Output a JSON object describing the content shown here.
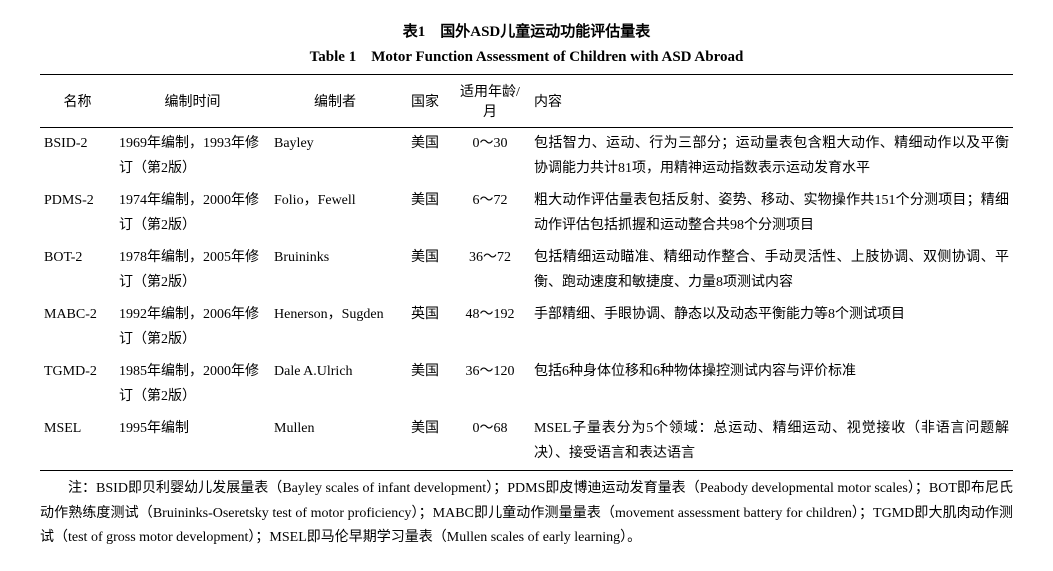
{
  "caption_zh": "表1　国外ASD儿童运动功能评估量表",
  "caption_en": "Table 1　Motor Function Assessment of Children with ASD Abroad",
  "columns": [
    "名称",
    "编制时间",
    "编制者",
    "国家",
    "适用年龄/月",
    "内容"
  ],
  "rows": [
    {
      "name": "BSID-2",
      "time": "1969年编制，1993年修订（第2版）",
      "author": "Bayley",
      "country": "美国",
      "age": "0～30",
      "content": "包括智力、运动、行为三部分；运动量表包含粗大动作、精细动作以及平衡协调能力共计81项，用精神运动指数表示运动发育水平"
    },
    {
      "name": "PDMS-2",
      "time": "1974年编制，2000年修订（第2版）",
      "author": "Folio，Fewell",
      "country": "美国",
      "age": "6～72",
      "content": "粗大动作评估量表包括反射、姿势、移动、实物操作共151个分测项目；精细动作评估包括抓握和运动整合共98个分测项目"
    },
    {
      "name": "BOT-2",
      "time": "1978年编制，2005年修订（第2版）",
      "author": "Bruininks",
      "country": "美国",
      "age": "36～72",
      "content": "包括精细运动瞄准、精细动作整合、手动灵活性、上肢协调、双侧协调、平衡、跑动速度和敏捷度、力量8项测试内容"
    },
    {
      "name": "MABC-2",
      "time": "1992年编制，2006年修订（第2版）",
      "author": "Henerson，Sugden",
      "country": "英国",
      "age": "48～192",
      "content": "手部精细、手眼协调、静态以及动态平衡能力等8个测试项目"
    },
    {
      "name": "TGMD-2",
      "time": "1985年编制，2000年修订（第2版）",
      "author": "Dale A.Ulrich",
      "country": "美国",
      "age": "36～120",
      "content": "包括6种身体位移和6种物体操控测试内容与评价标准"
    },
    {
      "name": "MSEL",
      "time": "1995年编制",
      "author": "Mullen",
      "country": "美国",
      "age": "0～68",
      "content": "MSEL子量表分为5个领域：总运动、精细运动、视觉接收（非语言问题解决）、接受语言和表达语言"
    }
  ],
  "note": "注：BSID即贝利婴幼儿发展量表（Bayley scales of infant development）；PDMS即皮博迪运动发育量表（Peabody developmental motor scales）；BOT即布尼氏动作熟练度测试（Bruininks-Oseretsky test of motor proficiency）；MABC即儿童动作测量量表（movement assessment battery for children）；TGMD即大肌肉动作测试（test of gross motor development）；MSEL即马伦早期学习量表（Mullen scales of early learning）。"
}
